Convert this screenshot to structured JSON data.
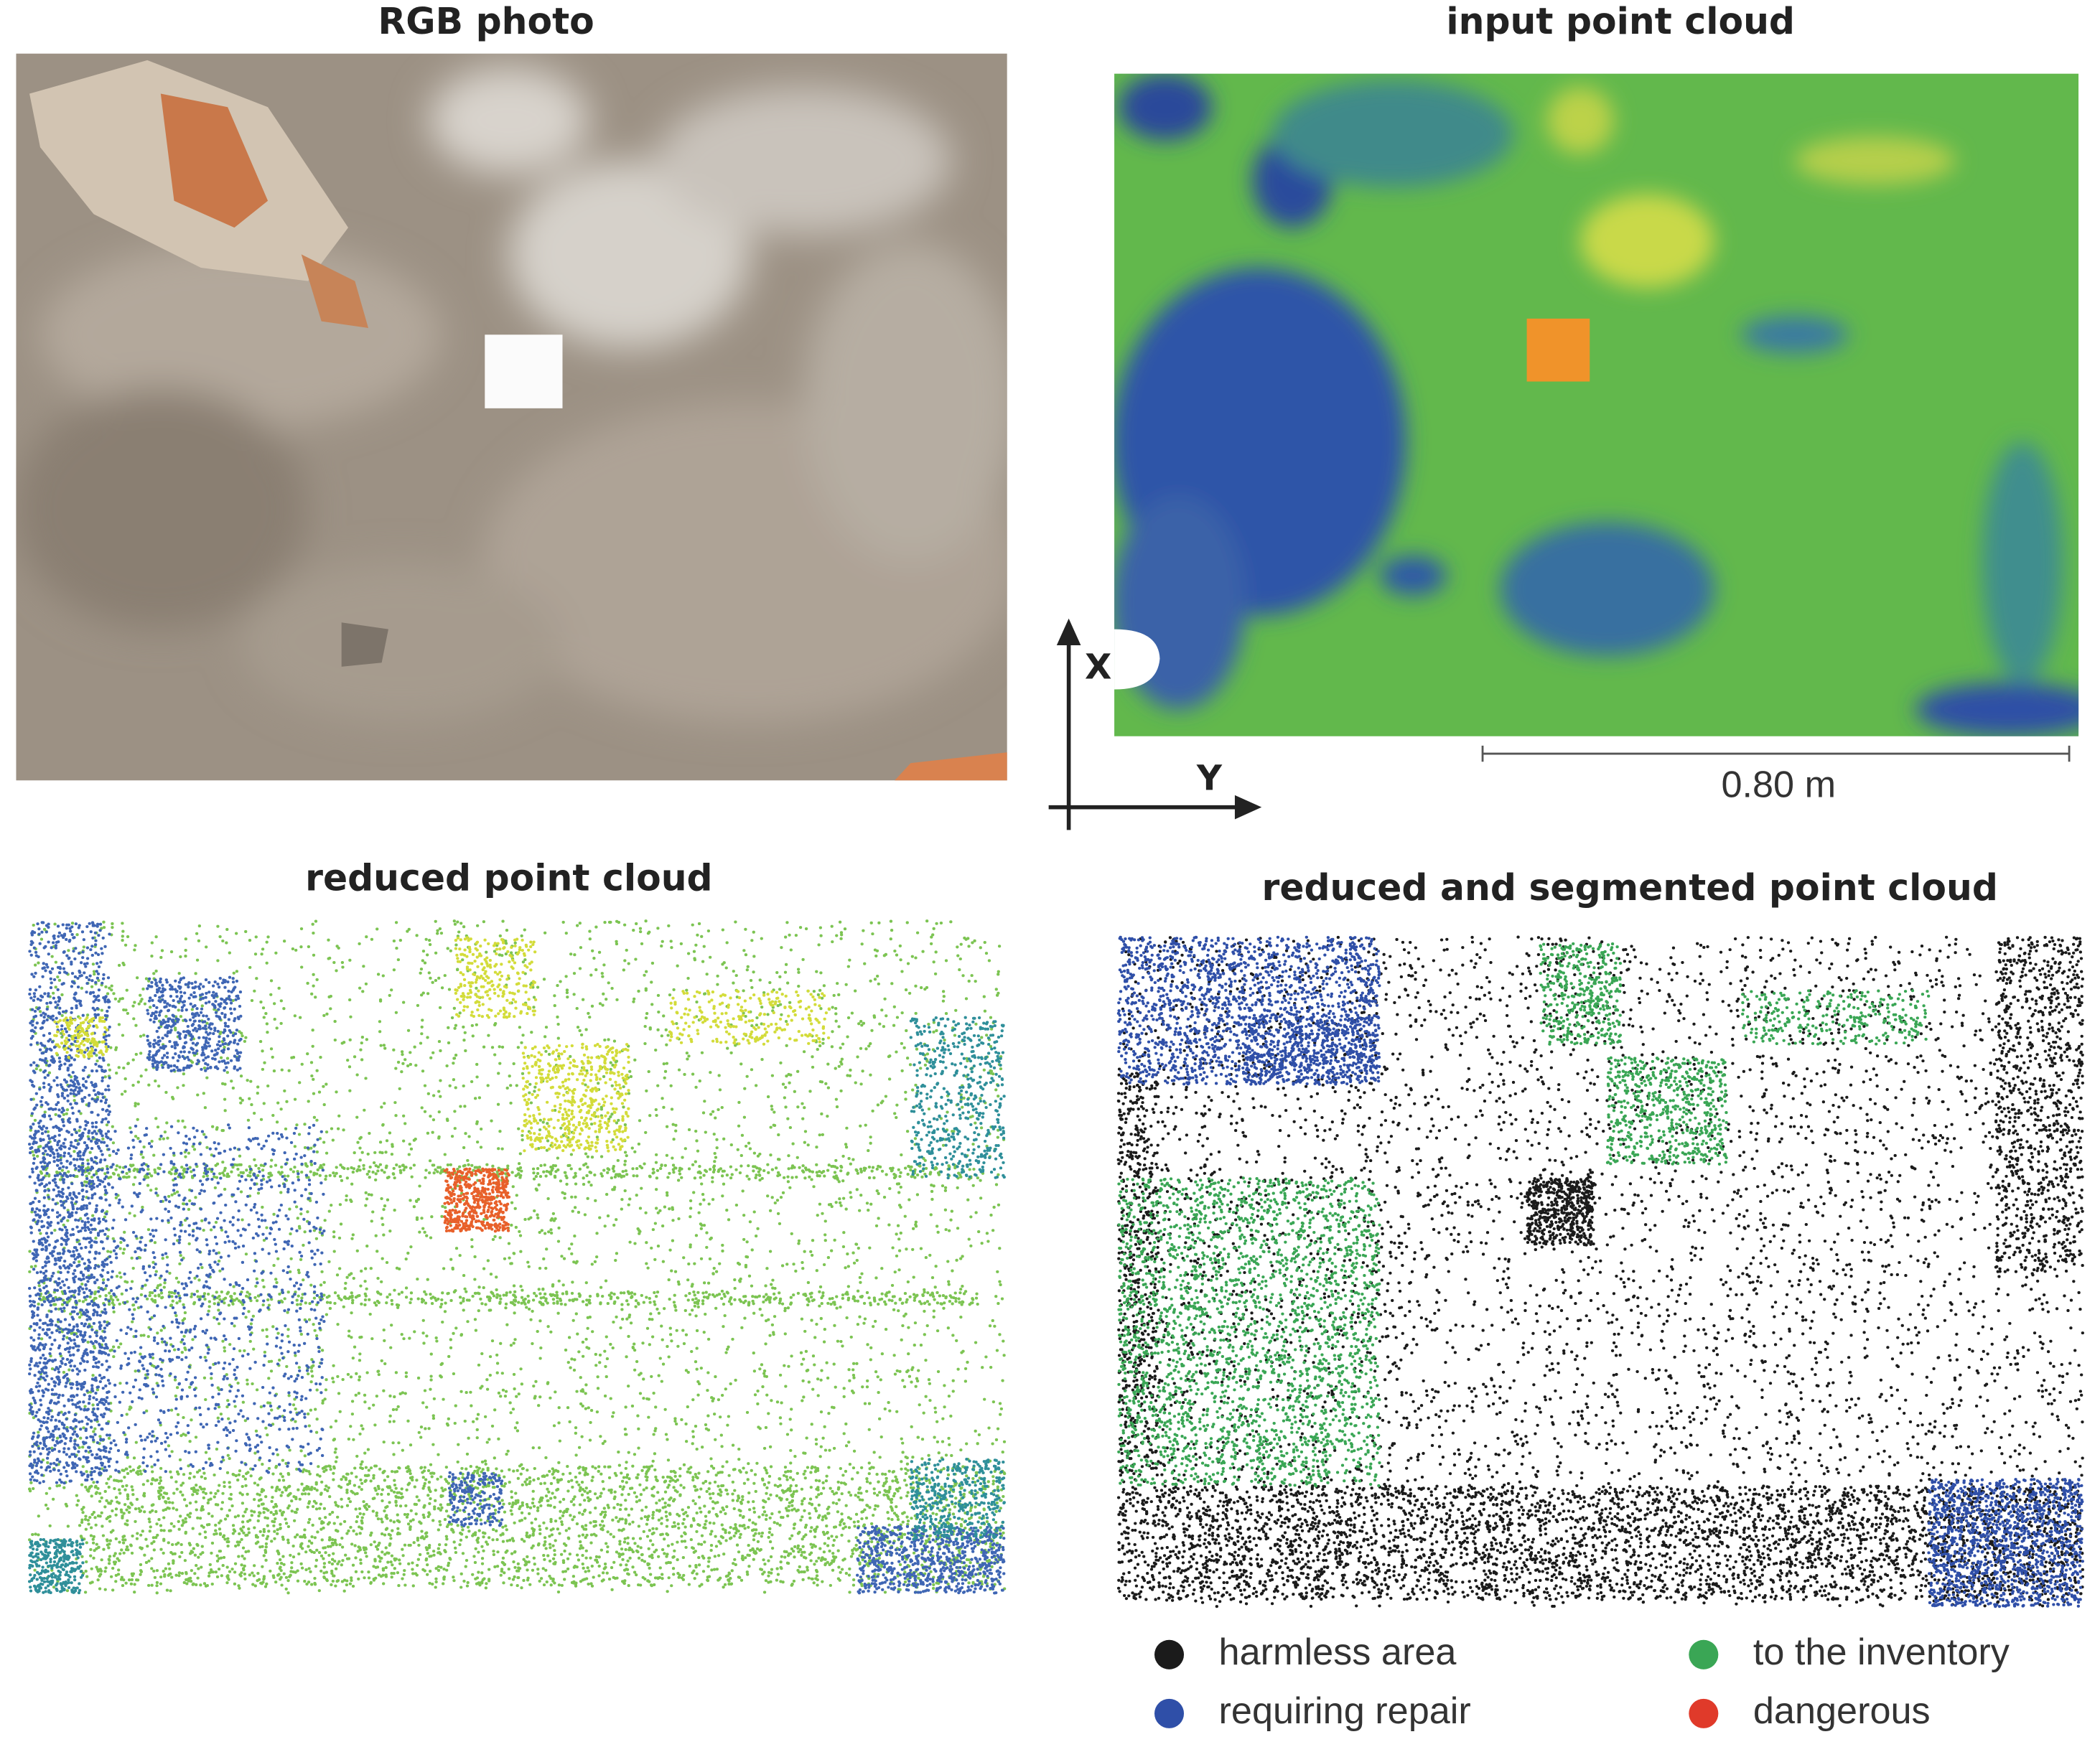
{
  "panels": [
    {
      "title": "RGB photo"
    },
    {
      "title": "input point cloud"
    },
    {
      "title": "reduced point cloud"
    },
    {
      "title": "reduced and segmented point cloud"
    }
  ],
  "axes": {
    "x": "X",
    "y": "Y"
  },
  "scale_bar": "0.80 m",
  "legend": [
    {
      "label": "harmless area",
      "color": "#1b1b1b"
    },
    {
      "label": "requiring repair",
      "color": "#2f4fa8"
    },
    {
      "label": "to the inventory",
      "color": "#3aa655"
    },
    {
      "label": "dangerous",
      "color": "#e03a2a"
    }
  ]
}
